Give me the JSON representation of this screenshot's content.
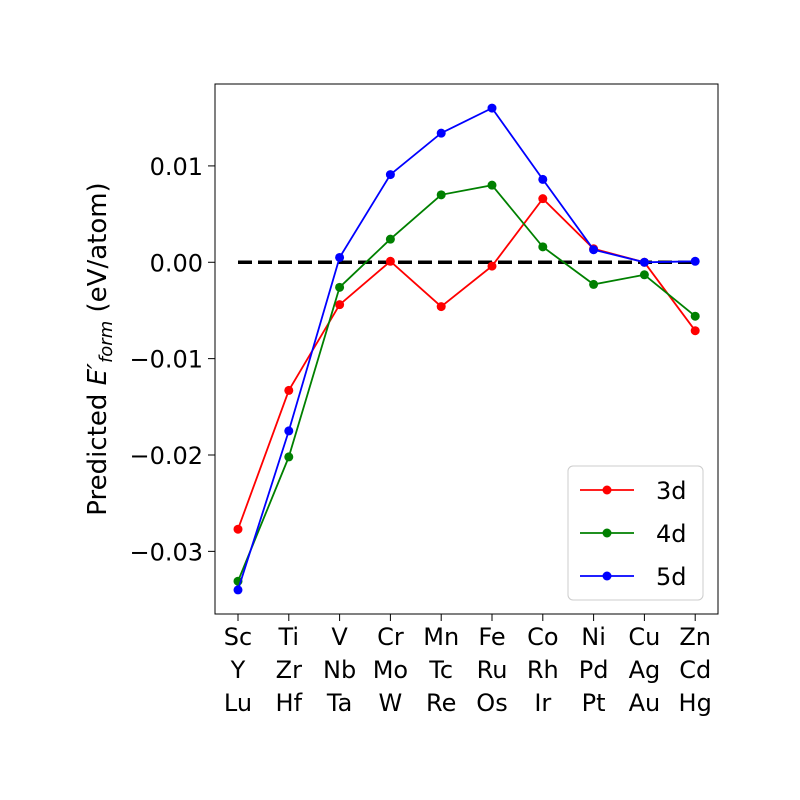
{
  "chart_data": {
    "type": "line",
    "categories": [
      [
        "Sc",
        "Y",
        "Lu"
      ],
      [
        "Ti",
        "Zr",
        "Hf"
      ],
      [
        "V",
        "Nb",
        "Ta"
      ],
      [
        "Cr",
        "Mo",
        "W"
      ],
      [
        "Mn",
        "Tc",
        "Re"
      ],
      [
        "Fe",
        "Ru",
        "Os"
      ],
      [
        "Co",
        "Rh",
        "Ir"
      ],
      [
        "Ni",
        "Pd",
        "Pt"
      ],
      [
        "Cu",
        "Ag",
        "Au"
      ],
      [
        "Zn",
        "Cd",
        "Hg"
      ]
    ],
    "series": [
      {
        "name": "3d",
        "color": "#ff0000",
        "values": [
          -0.0277,
          -0.0133,
          -0.0044,
          0.0001,
          -0.0046,
          -0.0004,
          0.0066,
          0.0014,
          0.0,
          -0.0071
        ]
      },
      {
        "name": "4d",
        "color": "#008000",
        "values": [
          -0.0331,
          -0.0202,
          -0.0026,
          0.0024,
          0.007,
          0.008,
          0.0016,
          -0.0023,
          -0.0013,
          -0.0056
        ]
      },
      {
        "name": "5d",
        "color": "#0000ff",
        "values": [
          -0.034,
          -0.0175,
          0.0005,
          0.0091,
          0.0134,
          0.016,
          0.0086,
          0.0013,
          0.0,
          0.0001
        ]
      }
    ],
    "reference_line": {
      "y": 0.0,
      "style": "dashed",
      "color": "#000000"
    },
    "ylabel": "Predicted E′form (eV/atom)",
    "ylabel_parts": {
      "prefix": "Predicted ",
      "symbol": "E′",
      "subscript": "form",
      "suffix": " (eV/atom)"
    },
    "yticks": [
      0.01,
      0.0,
      -0.01,
      -0.02,
      -0.03
    ],
    "ytick_labels": [
      "0.01",
      "0.00",
      "−0.01",
      "−0.02",
      "−0.03"
    ],
    "ylim": [
      -0.0365,
      0.0185
    ],
    "grid": false,
    "legend_position": "lower-right"
  }
}
